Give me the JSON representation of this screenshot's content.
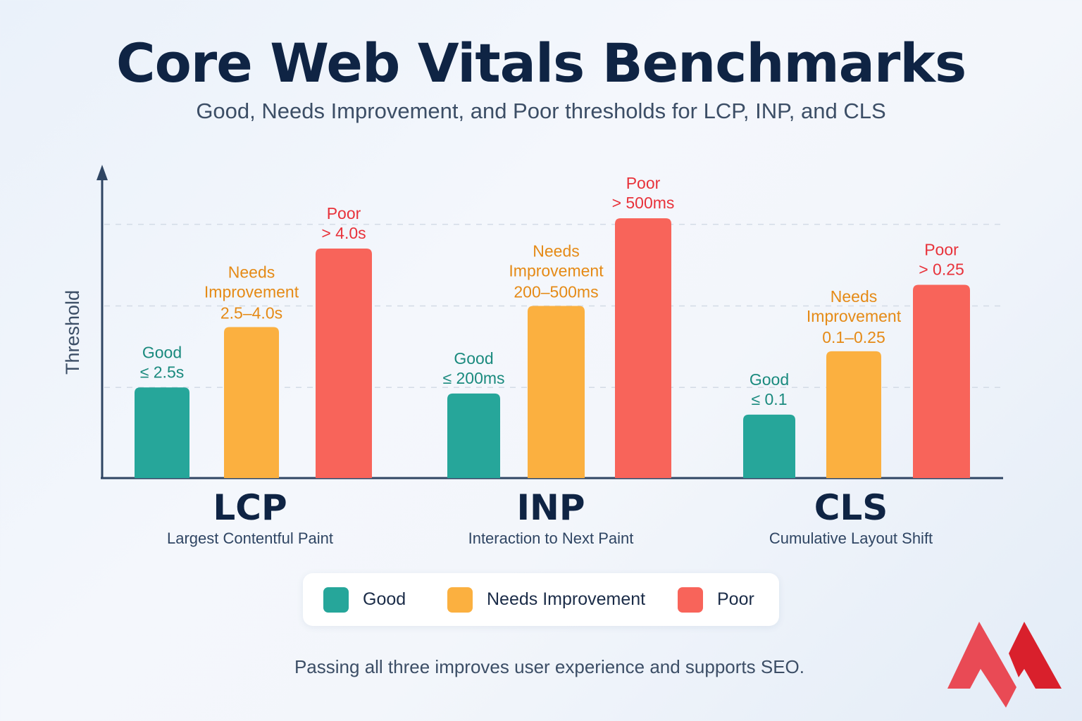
{
  "title": "Core Web Vitals Benchmarks",
  "subtitle": "Good, Needs Improvement, and Poor thresholds for LCP, INP, and CLS",
  "footer": "Passing all three improves user experience and supports SEO.",
  "colors": {
    "good": "#26a69a",
    "needs": "#fbb040",
    "poor": "#f8645a",
    "good_text": "#1a8a7e",
    "needs_text": "#e58a16",
    "poor_text": "#e8323a",
    "axis": "#2f4563"
  },
  "chart_data": {
    "type": "bar",
    "title": "Core Web Vitals Benchmarks",
    "ylabel": "Threshold",
    "xlabel": "",
    "ylim": [
      0,
      100
    ],
    "gridlines": [
      30,
      57,
      84
    ],
    "note": "Bar heights are illustrative relative values (no numeric axis shown)",
    "legend": {
      "position": "bottom",
      "entries": [
        "Good",
        "Needs Improvement",
        "Poor"
      ]
    },
    "categories": [
      {
        "abbr": "LCP",
        "name": "Largest Contentful Paint"
      },
      {
        "abbr": "INP",
        "name": "Interaction to Next Paint"
      },
      {
        "abbr": "CLS",
        "name": "Cumulative Layout Shift"
      }
    ],
    "series": [
      {
        "name": "Good",
        "key": "good",
        "values": [
          30,
          28,
          21
        ],
        "labels": [
          [
            "Good",
            "≤ 2.5s"
          ],
          [
            "Good",
            "≤ 200ms"
          ],
          [
            "Good",
            "≤ 0.1"
          ]
        ]
      },
      {
        "name": "Needs Improvement",
        "key": "needs",
        "values": [
          50,
          57,
          42
        ],
        "labels": [
          [
            "Needs",
            "Improvement",
            "2.5–4.0s"
          ],
          [
            "Needs",
            "Improvement",
            "200–500ms"
          ],
          [
            "Needs",
            "Improvement",
            "0.1–0.25"
          ]
        ]
      },
      {
        "name": "Poor",
        "key": "poor",
        "values": [
          76,
          86,
          64
        ],
        "labels": [
          [
            "Poor",
            "> 4.0s"
          ],
          [
            "Poor",
            "> 500ms"
          ],
          [
            "Poor",
            "> 0.25"
          ]
        ]
      }
    ]
  }
}
